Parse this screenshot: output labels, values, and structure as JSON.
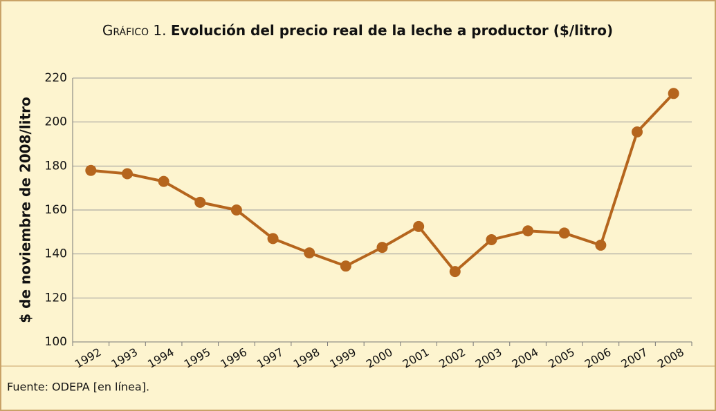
{
  "chart_data": {
    "type": "line",
    "title_label": "Gráfico 1.",
    "title": "Evolución del precio real de la leche a productor ($/litro)",
    "y_label": "$ de noviembre de 2008/litro",
    "source": "Fuente: ODEPA [en línea].",
    "categories": [
      "1992",
      "1993",
      "1994",
      "1995",
      "1996",
      "1997",
      "1998",
      "1999",
      "2000",
      "2001",
      "2002",
      "2003",
      "2004",
      "2005",
      "2006",
      "2007",
      "2008"
    ],
    "series": [
      {
        "name": "Precio real",
        "color": "#b5651d",
        "values": [
          178,
          176.5,
          173,
          163.5,
          160,
          147,
          140.5,
          134.5,
          143,
          152.5,
          132,
          146.5,
          150.5,
          149.5,
          144,
          195.5,
          213
        ]
      }
    ],
    "ylim": [
      100,
      220
    ],
    "yticks": [
      100,
      120,
      140,
      160,
      180,
      200,
      220
    ],
    "grid": true
  }
}
